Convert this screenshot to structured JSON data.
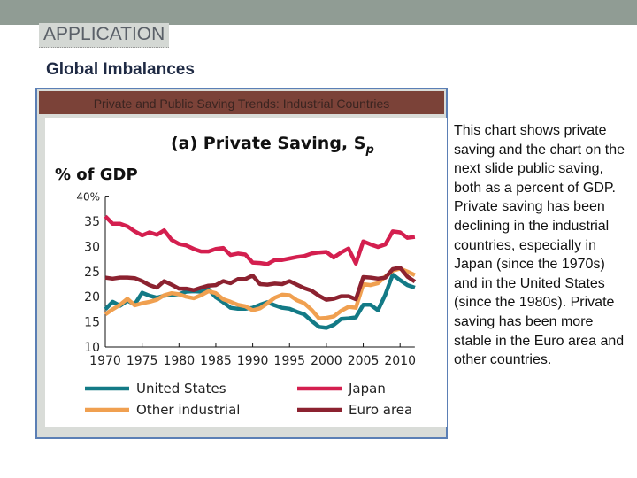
{
  "slide": {
    "section": "APPLICATION",
    "title": "Global Imbalances",
    "panel_title": "Private and Public Saving Trends: Industrial Countries",
    "description": "This chart shows private saving and the chart on the next slide public saving, both as a percent of GDP. Private saving has been declining in the industrial countries, especially in Japan (since the 1970s) and in the United States (since the 1980s). Private saving has been more stable in the Euro area and other countries."
  },
  "chart_data": {
    "type": "line",
    "title": "(a) Private Saving, S",
    "title_subscript": "p",
    "ylabel": "% of GDP",
    "ylim": [
      10,
      40
    ],
    "yticks": [
      "10",
      "15",
      "20",
      "25",
      "30",
      "35",
      "40%"
    ],
    "xlim": [
      1970,
      2012
    ],
    "xticks": [
      "1970",
      "1975",
      "1980",
      "1985",
      "1990",
      "1995",
      "2000",
      "2005",
      "2010"
    ],
    "x_start": 1970,
    "grid": false,
    "legend": "bottom",
    "series": [
      {
        "name": "United States",
        "color": "#137a86",
        "values": [
          17.5,
          19,
          18.2,
          19.2,
          18.5,
          20.8,
          20.2,
          19.8,
          20.2,
          20.4,
          20.5,
          21,
          21.1,
          21,
          21.5,
          19.9,
          18.9,
          17.8,
          17.6,
          17.6,
          17.8,
          18.4,
          18.9,
          18.3,
          17.8,
          17.6,
          17,
          16.5,
          15.2,
          14,
          13.8,
          14.4,
          15.6,
          15.7,
          15.9,
          18.4,
          18.4,
          17.3,
          20.4,
          24.4,
          23.3,
          22.3,
          21.8
        ]
      },
      {
        "name": "Other industrial",
        "color": "#f0a050",
        "values": [
          16.5,
          17.5,
          18.4,
          19.6,
          18.3,
          18.7,
          19,
          19.4,
          20.3,
          20.7,
          20.5,
          20,
          19.7,
          20.3,
          21.1,
          20.7,
          19.5,
          19,
          18.4,
          18.1,
          17.3,
          17.7,
          18.7,
          19.8,
          20.4,
          20.3,
          19.3,
          18.7,
          17.4,
          15.7,
          15.8,
          16.1,
          17.2,
          18,
          17.8,
          22.5,
          22.3,
          22.7,
          24,
          25.2,
          25.6,
          25,
          24.3
        ]
      },
      {
        "name": "Japan",
        "color": "#d41f4f",
        "values": [
          36,
          34.5,
          34.5,
          34,
          33,
          32.2,
          32.8,
          32.3,
          33.2,
          31.3,
          30.5,
          30.2,
          29.5,
          29,
          29,
          29.5,
          29.7,
          28.3,
          28.6,
          28.4,
          26.8,
          26.7,
          26.5,
          27.3,
          27.3,
          27.6,
          27.9,
          28.1,
          28.6,
          28.8,
          28.9,
          27.8,
          28.8,
          29.6,
          26.6,
          31,
          30.4,
          29.9,
          30.4,
          33,
          32.8,
          31.7,
          31.9
        ]
      },
      {
        "name": "Euro area",
        "color": "#8c2230",
        "values": [
          23.8,
          23.6,
          23.8,
          23.8,
          23.7,
          23.1,
          22.3,
          21.8,
          23.1,
          22.4,
          21.6,
          21.6,
          21.3,
          21.8,
          22.2,
          22.3,
          23.1,
          22.7,
          23.5,
          23.5,
          24.2,
          22.5,
          22.4,
          22.6,
          22.5,
          23.1,
          22.4,
          21.7,
          21.2,
          20.2,
          19.4,
          19.6,
          20.1,
          20.1,
          19.5,
          23.9,
          23.8,
          23.6,
          23.8,
          25.5,
          25.8,
          24,
          23
        ]
      }
    ]
  }
}
